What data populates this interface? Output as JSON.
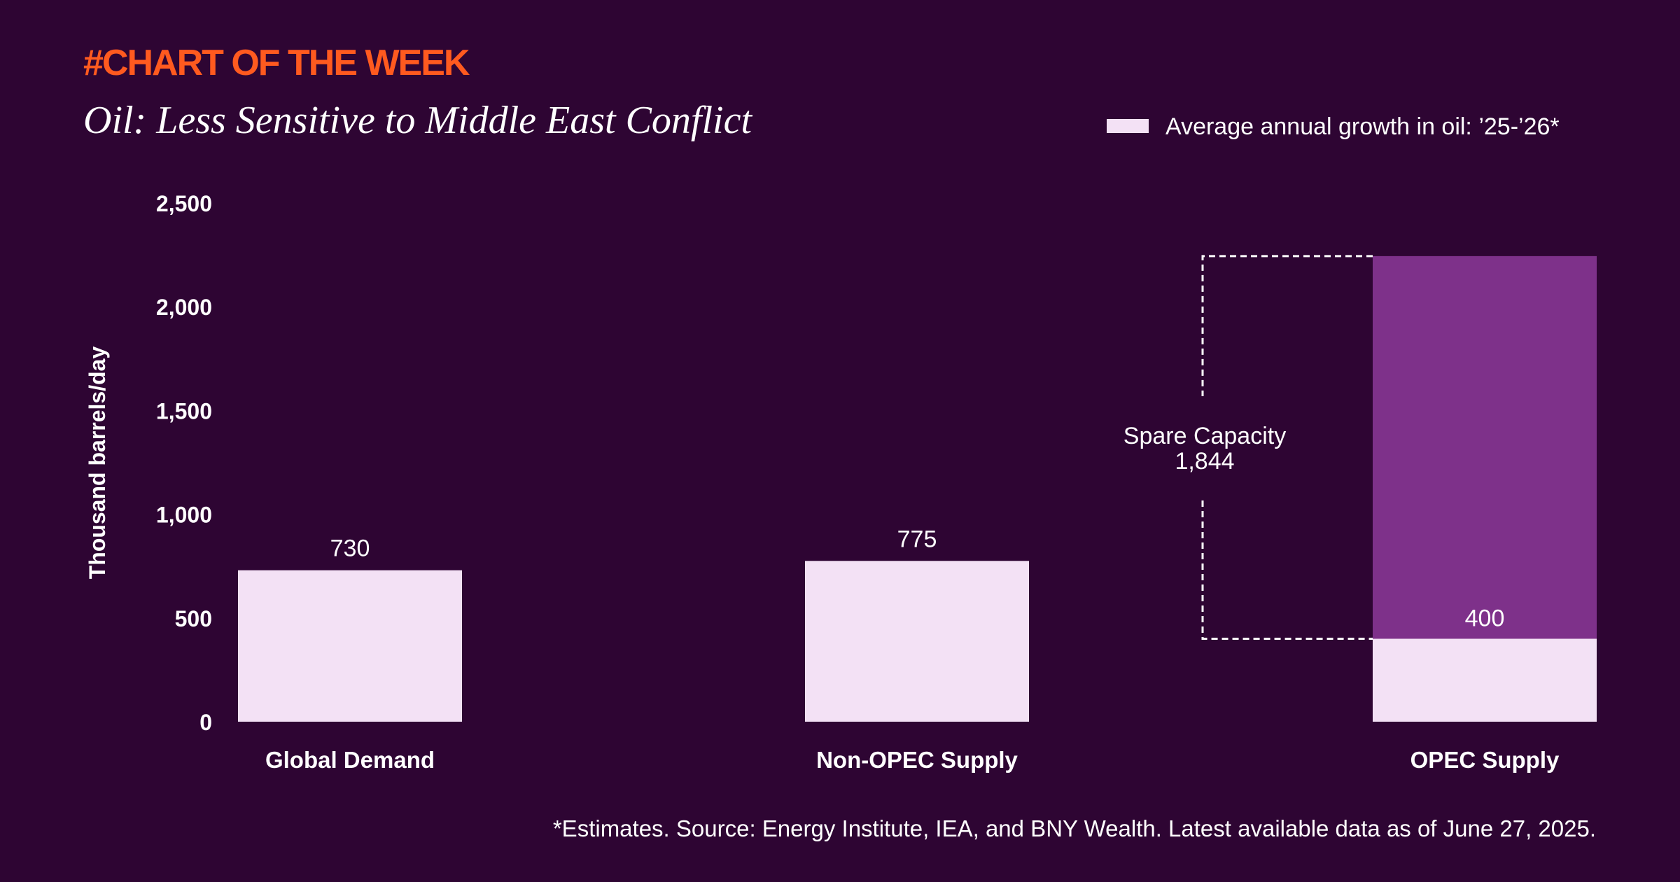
{
  "header": {
    "kicker": "#CHART OF THE WEEK",
    "title": "Oil: Less Sensitive to Middle East Conflict"
  },
  "colors": {
    "background": "#2e0533",
    "kicker": "#ff5a1f",
    "bar": "#f3e1f5",
    "spare_capacity": "#7e318a",
    "text": "#ffffff"
  },
  "chart_data": {
    "type": "bar",
    "stacked": true,
    "categories": [
      "Global Demand",
      "Non-OPEC Supply",
      "OPEC Supply"
    ],
    "series": [
      {
        "name": "Average annual growth in oil: ’25-’26*",
        "values": [
          730,
          775,
          400
        ],
        "labels": [
          "730",
          "775",
          "400"
        ]
      },
      {
        "values": [
          0,
          0,
          1844
        ]
      }
    ],
    "annotation": {
      "label": "Spare Capacity",
      "value": "1,844"
    },
    "ylabel": "Thousand barrels/day",
    "ylim": [
      0,
      2500
    ],
    "yticks": [
      0,
      500,
      1000,
      1500,
      2000,
      2500
    ],
    "ytick_labels": [
      "0",
      "500",
      "1,000",
      "1,500",
      "2,000",
      "2,500"
    ],
    "grid": false,
    "legend": {
      "position": "top-right",
      "label": "Average annual growth in oil: ’25-’26*"
    }
  },
  "footnote": "*Estimates. Source: Energy Institute, IEA, and BNY Wealth. Latest available data as of June 27, 2025."
}
